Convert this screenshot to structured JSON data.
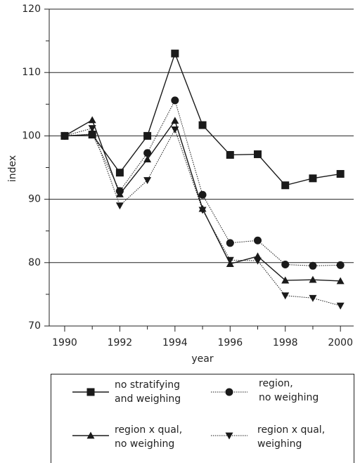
{
  "chart_data": {
    "type": "line",
    "x_label": "year",
    "y_label": "index",
    "x": [
      1990,
      1991,
      1992,
      1993,
      1994,
      1995,
      1996,
      1997,
      1998,
      1999,
      2000
    ],
    "xlim": [
      1989.44,
      2000.48
    ],
    "xticks": [
      1990,
      1992,
      1994,
      1996,
      1998,
      2000
    ],
    "xminorticks": [
      1991,
      1993,
      1995,
      1997,
      1999
    ],
    "ylim": [
      70,
      120
    ],
    "yticks": [
      70,
      80,
      90,
      100,
      110,
      120
    ],
    "yminorticks": [
      75,
      85,
      95,
      105,
      115
    ],
    "grid": true,
    "series": [
      {
        "name": "no stratifying\nand weighing",
        "color": "#1a1a1a",
        "marker": "square",
        "dash": "solid",
        "values": [
          100,
          100.2,
          94.2,
          100,
          113,
          101.7,
          97,
          97.1,
          92.2,
          93.3,
          94
        ]
      },
      {
        "name": "region,\nno weighing",
        "color": "#1a1a1a",
        "marker": "circle",
        "dash": "dotted",
        "values": [
          100,
          100.3,
          91.3,
          97.3,
          105.6,
          90.7,
          83.1,
          83.5,
          79.7,
          79.5,
          79.6
        ]
      },
      {
        "name": "region x qual,\nno weighing",
        "color": "#1a1a1a",
        "marker": "triangle-up",
        "dash": "solid",
        "values": [
          100,
          102.5,
          90.8,
          96.3,
          102.4,
          88.5,
          79.8,
          81,
          77.2,
          77.3,
          77.1
        ]
      },
      {
        "name": "region x qual,\nweighing",
        "color": "#1a1a1a",
        "marker": "triangle-down",
        "dash": "dotted",
        "values": [
          100,
          101.2,
          89,
          93,
          101,
          88.3,
          80.4,
          80.3,
          74.8,
          74.4,
          73.2
        ]
      }
    ]
  }
}
